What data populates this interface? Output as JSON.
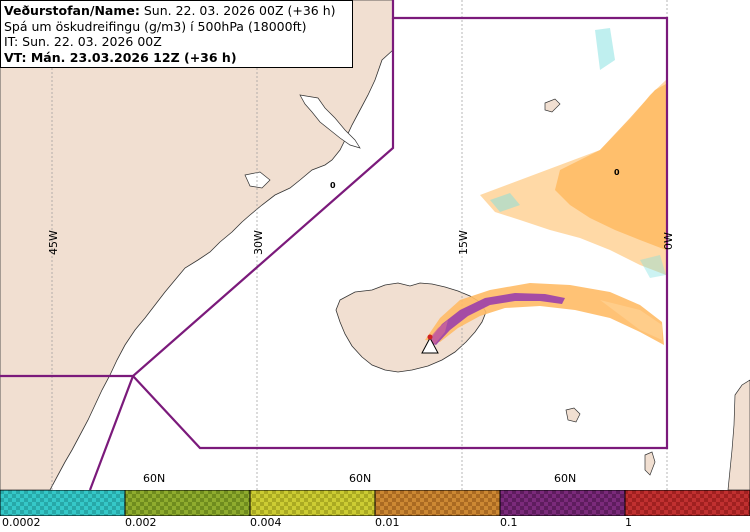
{
  "header": {
    "line1_label": "Veðurstofan/Name:",
    "line1_value": "Sun. 22. 03. 2026 00Z (+36 h)",
    "line2": "Spá um öskudreifingu (g/m3) í 500hPa (18000ft)",
    "line3": "IT: Sun. 22. 03. 2026 00Z",
    "line4": "VT: Mán. 23.03.2026 12Z (+36 h)"
  },
  "grid": {
    "lon_labels": [
      "45W",
      "30W",
      "15W",
      "0W"
    ],
    "lat_labels": [
      "60N",
      "60N",
      "60N"
    ]
  },
  "map_labels": {
    "zero_markers": [
      "0",
      "0"
    ]
  },
  "legend": {
    "labels": [
      "0.0002",
      "0.002",
      "0.004",
      "0.01",
      "0.1",
      "1"
    ],
    "colors": [
      "#35c8c8",
      "#8fac2e",
      "#cccc33",
      "#cc8833",
      "#7b2a7b",
      "#c03030"
    ]
  },
  "colors": {
    "land": "#f1dfd1",
    "sea": "#ffffff",
    "boundary": "#7b1a7b",
    "ash_low": "#ffbb66",
    "ash_mid": "#ffd090",
    "ash_high": "#a54ca5",
    "ash_cyan": "#7fe0e0"
  }
}
